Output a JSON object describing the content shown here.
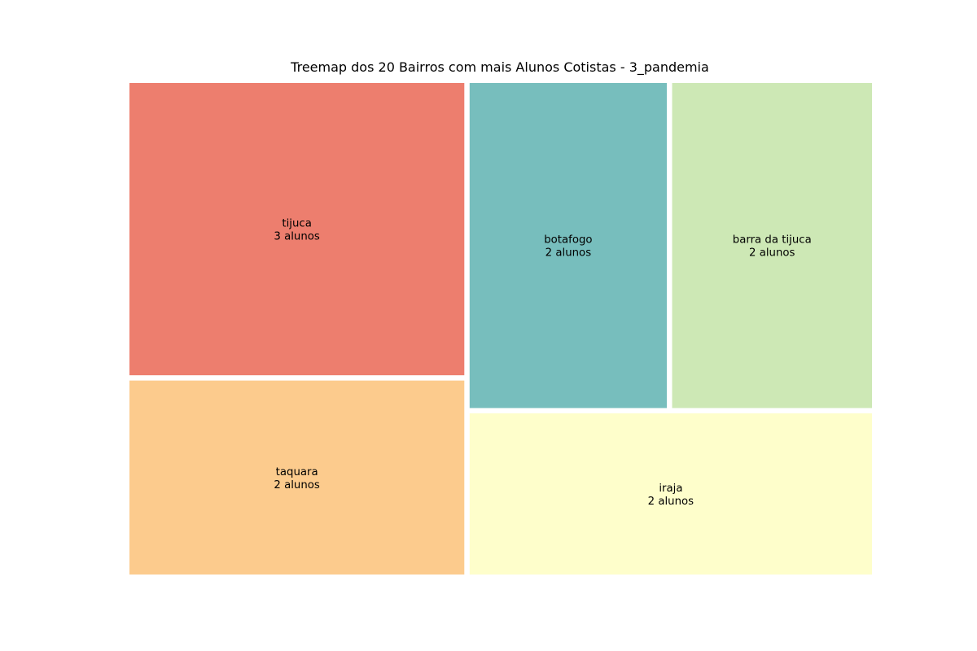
{
  "chart_data": {
    "type": "treemap",
    "title": "Treemap dos 20 Bairros com mais Alunos Cotistas - 3_pandemia",
    "unit": "alunos",
    "items": [
      {
        "label": "tijuca",
        "value": 3,
        "value_text": "3 alunos",
        "color": "#ed7e6e"
      },
      {
        "label": "taquara",
        "value": 2,
        "value_text": "2 alunos",
        "color": "#fccb8d"
      },
      {
        "label": "botafogo",
        "value": 2,
        "value_text": "2 alunos",
        "color": "#77bebd"
      },
      {
        "label": "barra da tijuca",
        "value": 2,
        "value_text": "2 alunos",
        "color": "#cde8b5"
      },
      {
        "label": "iraja",
        "value": 2,
        "value_text": "2 alunos",
        "color": "#fefecb"
      }
    ]
  }
}
